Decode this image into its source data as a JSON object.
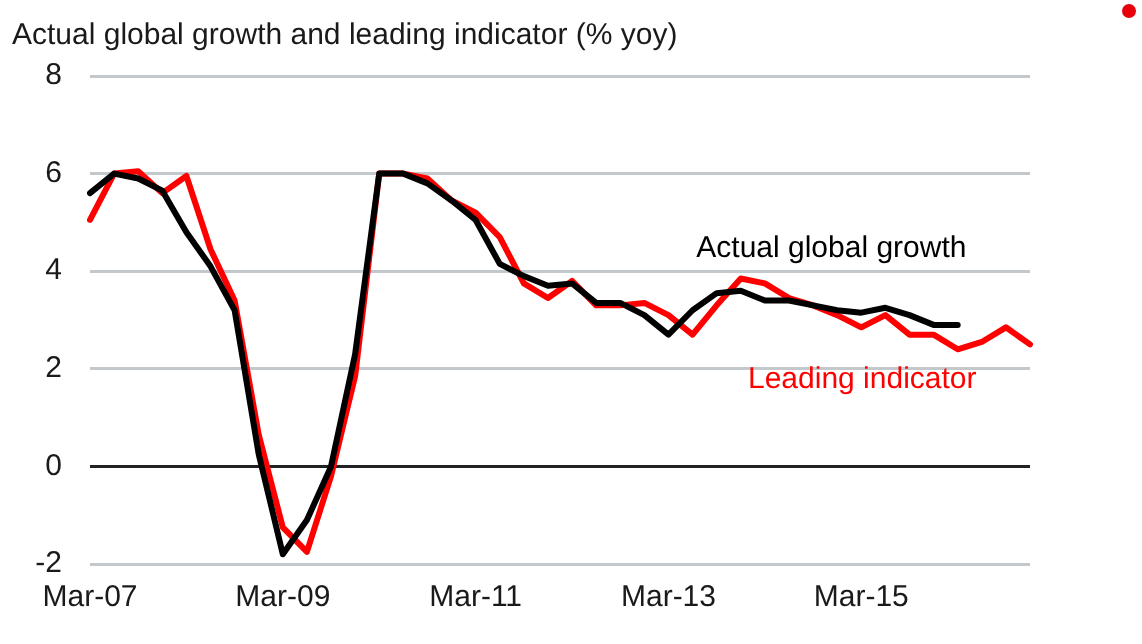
{
  "chart_data": {
    "type": "line",
    "title": "Actual global growth and leading indicator (% yoy)",
    "categories": [
      "Mar-07",
      null,
      null,
      null,
      null,
      null,
      null,
      null,
      "Mar-09",
      null,
      null,
      null,
      null,
      null,
      null,
      null,
      "Mar-11",
      null,
      null,
      null,
      null,
      null,
      null,
      null,
      "Mar-13",
      null,
      null,
      null,
      null,
      null,
      null,
      null,
      "Mar-15",
      null,
      null,
      null,
      null,
      null,
      null,
      null
    ],
    "series": [
      {
        "name": "Actual global growth",
        "color": "#000000",
        "values": [
          5.6,
          6.0,
          5.9,
          5.65,
          4.8,
          4.1,
          3.2,
          0.25,
          -1.8,
          -1.1,
          0,
          2.3,
          6.0,
          6.0,
          5.8,
          5.45,
          5.05,
          4.15,
          3.9,
          3.7,
          3.75,
          3.35,
          3.35,
          3.1,
          2.7,
          3.2,
          3.55,
          3.6,
          3.4,
          3.4,
          3.3,
          3.2,
          3.15,
          3.25,
          3.1,
          2.9,
          2.9,
          null,
          null,
          null
        ]
      },
      {
        "name": "Leading indicator",
        "color": "#ff0000",
        "values": [
          5.05,
          6.0,
          6.05,
          5.6,
          5.95,
          4.45,
          3.4,
          0.65,
          -1.25,
          -1.75,
          -0.2,
          1.85,
          6.0,
          6.0,
          5.9,
          5.45,
          5.2,
          4.7,
          3.75,
          3.45,
          3.8,
          3.3,
          3.3,
          3.35,
          3.1,
          2.7,
          3.3,
          3.85,
          3.75,
          3.45,
          3.3,
          3.1,
          2.85,
          3.1,
          2.7,
          2.7,
          2.4,
          2.55,
          2.85,
          2.5
        ]
      }
    ],
    "ylim": [
      -2,
      8
    ],
    "yticks": [
      -2,
      0,
      2,
      4,
      6,
      8
    ],
    "grid": "y",
    "legend": false,
    "marker": "none",
    "line_style": "solid"
  }
}
